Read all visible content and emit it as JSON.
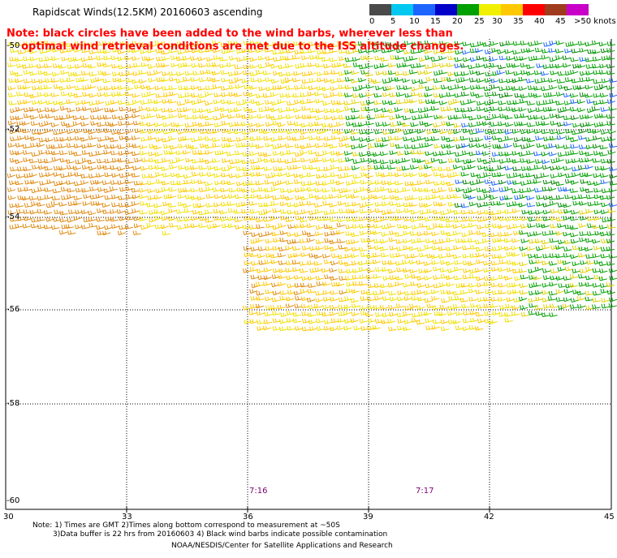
{
  "header": {
    "title": "Rapidscat Winds(12.5KM) 20160603 ascending",
    "note_line1": "Note: black circles have been added to the wind barbs, wherever less than",
    "note_line2": "    optimal wind retrieval conditions are met due to the ISS altitude changes."
  },
  "colorbar": {
    "labels": [
      "0",
      "5",
      "10",
      "15",
      "20",
      "25",
      "30",
      "35",
      "40",
      "45",
      ">50 knots"
    ],
    "colors": [
      "#4a4a4a",
      "#00c8f0",
      "#1e64ff",
      "#0000c8",
      "#00a000",
      "#f0f000",
      "#ffc800",
      "#ff0000",
      "#a03c1e",
      "#c800c8",
      "#64009b"
    ]
  },
  "axes": {
    "lat_labels": [
      "-50",
      "-52",
      "-54",
      "-56",
      "-58",
      "-60"
    ],
    "lon_labels": [
      "30",
      "33",
      "36",
      "39",
      "42",
      "45"
    ]
  },
  "times": [
    "7:16",
    "7:17"
  ],
  "footer": {
    "line1": "Note: 1) Times are GMT 2)Times along bottom correspond to measurement at ~50S",
    "line2": "3)Data buffer is 22 hrs from 20160603 4) Black wind barbs indicate possible contamination",
    "line3": "NOAA/NESDIS/Center for Satellite Applications and Research"
  }
}
